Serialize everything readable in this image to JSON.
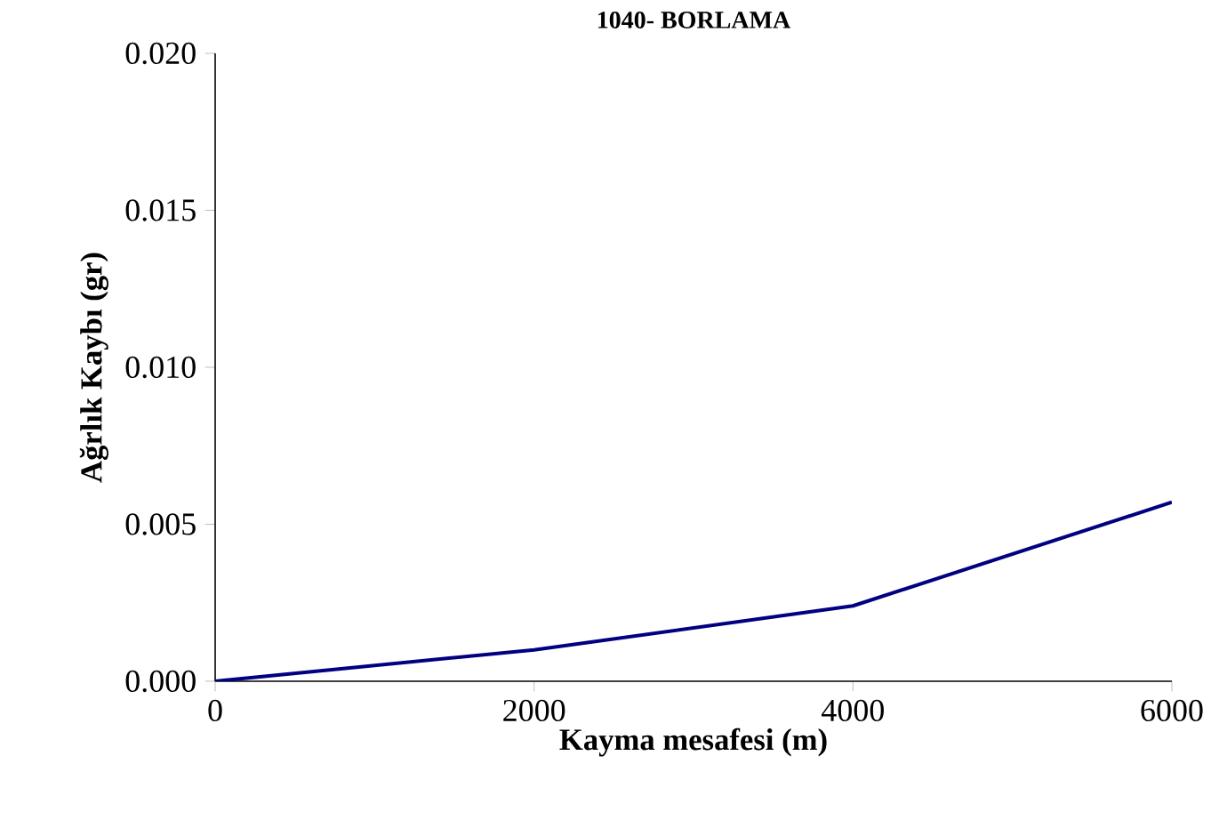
{
  "chart_data": {
    "type": "line",
    "title": "1040- BORLAMA",
    "xlabel": "Kayma mesafesi (m)",
    "ylabel": "Ağrlık Kaybı (gr)",
    "x": [
      0,
      2000,
      4000,
      6000
    ],
    "series": [
      {
        "color": "#000080",
        "values": [
          0,
          0.001,
          0.0024,
          0.0057
        ]
      }
    ],
    "xlim": [
      0,
      6000
    ],
    "xticks": [
      0,
      2000,
      4000,
      6000
    ],
    "ylim": [
      0,
      0.02
    ],
    "yticks": [
      {
        "value": 0,
        "label": "0.000"
      },
      {
        "value": 0.005,
        "label": "0.005"
      },
      {
        "value": 0.01,
        "label": "0.010"
      },
      {
        "value": 0.015,
        "label": "0.015"
      },
      {
        "value": 0.02,
        "label": "0.020"
      }
    ],
    "grid": false,
    "marker": "none",
    "line_style": "solid"
  }
}
